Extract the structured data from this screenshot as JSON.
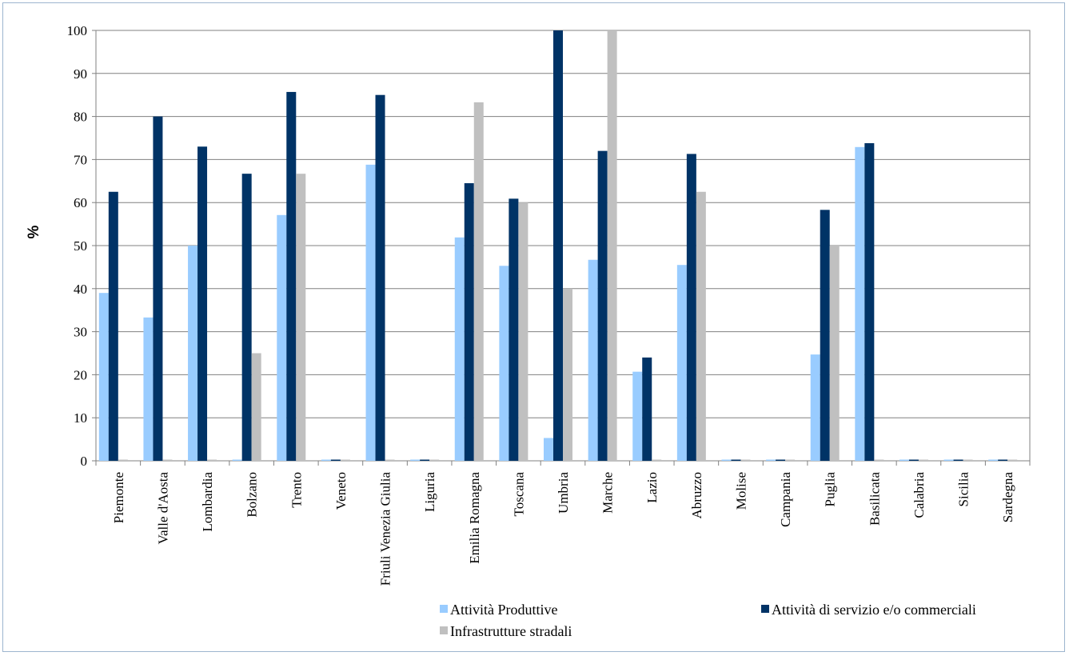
{
  "chart_data": {
    "type": "bar",
    "title": "",
    "xlabel": "",
    "ylabel": "%",
    "ylim": [
      0,
      100
    ],
    "yticks": [
      0,
      10,
      20,
      30,
      40,
      50,
      60,
      70,
      80,
      90,
      100
    ],
    "grid": true,
    "legend_position": "bottom",
    "categories": [
      "Piemonte",
      "Valle d'Aosta",
      "Lombardia",
      "Bolzano",
      "Trento",
      "Veneto",
      "Friuli Venezia Giulia",
      "Liguria",
      "Emilia Romagna",
      "Toscana",
      "Umbria",
      "Marche",
      "Lazio",
      "Abruzzo",
      "Molise",
      "Campania",
      "Puglia",
      "Basilicata",
      "Calabria",
      "Sicilia",
      "Sardegna"
    ],
    "series": [
      {
        "name": "Attività Produttive",
        "color": "#99ccff",
        "values": [
          39,
          33.3,
          50,
          0,
          57.1,
          0,
          68.8,
          0,
          51.9,
          45.3,
          5.3,
          46.7,
          20.7,
          45.5,
          0,
          0,
          24.7,
          72.9,
          0,
          0,
          0
        ]
      },
      {
        "name": "Attività di servizio e/o commerciali",
        "color": "#003366",
        "values": [
          62.5,
          80,
          73,
          66.7,
          85.7,
          0,
          85,
          0,
          64.5,
          60.9,
          100,
          72,
          24,
          71.3,
          0,
          0,
          58.3,
          73.8,
          0,
          0,
          0
        ]
      },
      {
        "name": "Infrastrutture stradali",
        "color": "#c0c0c0",
        "values": [
          0,
          0,
          0,
          25,
          66.7,
          0,
          0,
          0,
          83.3,
          60,
          40,
          100,
          0,
          62.5,
          0,
          0,
          50,
          0,
          0,
          0,
          0
        ]
      }
    ]
  }
}
